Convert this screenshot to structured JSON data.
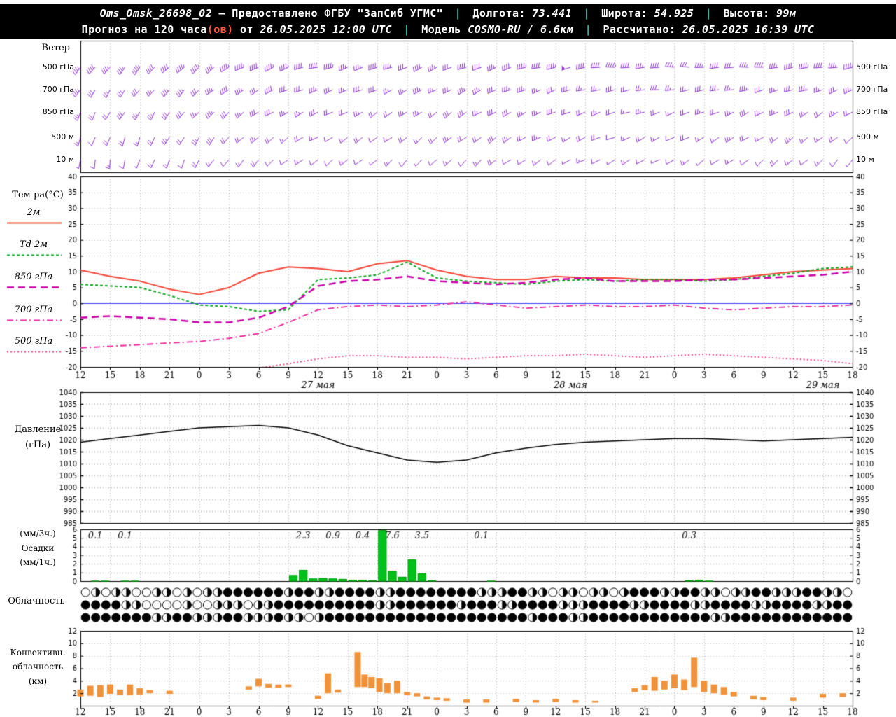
{
  "header": {
    "line1": {
      "station": "Oms_Omsk_26698_02",
      "provided": "– Предоставлено ФГБУ \"ЗапСиб УГМС\"",
      "sep": "|",
      "lon_label": "Долгота:",
      "lon_value": "73.441",
      "lat_label": "Широта:",
      "lat_value": "54.925",
      "alt_label": "Высота:",
      "alt_value": "99м"
    },
    "line2": {
      "forecast_prefix": "Прогноз на 120 часа",
      "forecast_ov": "(ов)",
      "forecast_from": "от",
      "run_datetime": "26.05.2025 12:00 UTC",
      "sep": "|",
      "model_label": "Модель",
      "model_value": "COSMO-RU / 6.6км",
      "calc_label": "Рассчитано:",
      "calc_datetime": "26.05.2025 16:39 UTC"
    }
  },
  "panels": {
    "wind_title": "Ветер",
    "temp_title": "Тем-ра(°C)",
    "pressure_title_1": "Давление",
    "pressure_title_2": "(гПа)",
    "precip_title_1": "(мм/3ч.)",
    "precip_title_2": "Осадки",
    "precip_title_3": "(мм/1ч.)",
    "cloud_title": "Облачность",
    "conv_title_1": "Конвективн.",
    "conv_title_2": "облачность",
    "conv_title_3": "(км)"
  },
  "x_axis": {
    "tick_labels": [
      "12",
      "15",
      "18",
      "21",
      "0",
      "3",
      "6",
      "9",
      "12",
      "15",
      "18",
      "21",
      "0",
      "3",
      "6",
      "9",
      "12",
      "15",
      "18",
      "21",
      "0",
      "3",
      "6",
      "9",
      "12",
      "15",
      "18"
    ],
    "day_labels": [
      {
        "text": "27 мая",
        "pos": 8
      },
      {
        "text": "28 мая",
        "pos": 16.5
      },
      {
        "text": "29 мая",
        "pos": 25
      }
    ]
  },
  "chart_data": [
    {
      "id": "wind",
      "type": "wind-barbs",
      "color": "#8b33cc",
      "t_step_hours": 6,
      "span_hours": 78,
      "levels": [
        {
          "label": "500 гПа",
          "dir": [
            215,
            220,
            230,
            245,
            255,
            250,
            245,
            250,
            255,
            265,
            270,
            268,
            262,
            258
          ],
          "spd": [
            35,
            40,
            45,
            45,
            40,
            35,
            35,
            40,
            45,
            40,
            35,
            35,
            40,
            40
          ]
        },
        {
          "label": "700 гПа",
          "dir": [
            210,
            215,
            225,
            240,
            250,
            245,
            240,
            245,
            250,
            258,
            262,
            258,
            252,
            248
          ],
          "spd": [
            30,
            30,
            35,
            35,
            30,
            25,
            30,
            35,
            30,
            25,
            25,
            30,
            30,
            30
          ]
        },
        {
          "label": "850 гПа",
          "dir": [
            205,
            210,
            220,
            235,
            245,
            238,
            232,
            240,
            246,
            252,
            250,
            246,
            240,
            236
          ],
          "spd": [
            20,
            25,
            30,
            30,
            25,
            20,
            25,
            30,
            25,
            20,
            20,
            25,
            25,
            20
          ]
        },
        {
          "label": "500 м",
          "dir": [
            195,
            202,
            212,
            228,
            240,
            232,
            228,
            235,
            242,
            246,
            242,
            238,
            232,
            228
          ],
          "spd": [
            15,
            20,
            25,
            20,
            15,
            15,
            20,
            25,
            20,
            15,
            15,
            20,
            20,
            15
          ]
        },
        {
          "label": "10 м",
          "dir": [
            185,
            195,
            208,
            222,
            235,
            228,
            222,
            230,
            238,
            242,
            238,
            232,
            228,
            222
          ],
          "spd": [
            10,
            10,
            15,
            15,
            10,
            10,
            10,
            15,
            10,
            10,
            10,
            10,
            15,
            10
          ]
        }
      ]
    },
    {
      "id": "temperature",
      "type": "line",
      "title": "Тем-ра(°C)",
      "x_step_hours": 3,
      "ylim": [
        -20,
        40
      ],
      "ytick_step": 5,
      "zero_line": {
        "value": 0,
        "color": "#4040ff"
      },
      "series": [
        {
          "name": "2м",
          "color": "#f4483a",
          "dash": [],
          "width": 2,
          "values": [
            10.5,
            8.5,
            7,
            4.5,
            2.8,
            5,
            9.5,
            11.5,
            11,
            10,
            12.5,
            13.5,
            10.5,
            8.5,
            7.5,
            7.5,
            8.5,
            8,
            8,
            7.5,
            7.5,
            7.5,
            8,
            9,
            10,
            10.5,
            11
          ]
        },
        {
          "name": "Td 2м",
          "color": "#0da520",
          "dash": [
            4,
            3
          ],
          "width": 2,
          "values": [
            6,
            5.5,
            5,
            2.5,
            -0.5,
            -1,
            -2.5,
            -2,
            7.5,
            8,
            9,
            13,
            8,
            7,
            6.5,
            6,
            7,
            7.5,
            7,
            7.5,
            7.5,
            7,
            7.5,
            8.5,
            9.5,
            11,
            11.5
          ]
        },
        {
          "name": "850 гПа",
          "color": "#cc00aa",
          "dash": [
            10,
            6
          ],
          "width": 2.5,
          "values": [
            -4.5,
            -4,
            -4.5,
            -5,
            -6,
            -6,
            -4.5,
            -1,
            5.5,
            7,
            7.5,
            8.5,
            7,
            6.5,
            6,
            6.5,
            7.5,
            8,
            7,
            7,
            7,
            7.5,
            7.5,
            8,
            8.5,
            9,
            10
          ]
        },
        {
          "name": "700 гПа",
          "color": "#e8239b",
          "dash": [
            9,
            4,
            2,
            4
          ],
          "width": 1.8,
          "values": [
            -14,
            -13.5,
            -13,
            -12.5,
            -12,
            -11,
            -9.5,
            -6,
            -2,
            -1,
            -0.5,
            -1,
            -0.5,
            0.5,
            -0.5,
            -1.5,
            -1,
            -0.5,
            -1,
            -1,
            -0.5,
            -1.5,
            -2,
            -1.5,
            -1,
            -1,
            -0.5
          ]
        },
        {
          "name": "500 гПа",
          "color": "#ef3d76",
          "dash": [
            2,
            3
          ],
          "width": 1.8,
          "values": [
            -23,
            -23,
            -22.5,
            -22,
            -21.5,
            -21,
            -20.3,
            -19,
            -17.5,
            -16.5,
            -16.5,
            -17,
            -17,
            -17.5,
            -17,
            -16.5,
            -16.5,
            -16,
            -16.5,
            -17,
            -16.5,
            -16,
            -16.5,
            -17,
            -17.5,
            -18,
            -19
          ]
        }
      ]
    },
    {
      "id": "pressure",
      "type": "line",
      "ylim": [
        985,
        1040
      ],
      "ytick_step": 5,
      "series": [
        {
          "name": "Давление (гПа)",
          "color": "#000000",
          "dash": [],
          "width": 1.5,
          "values": [
            1019,
            1020.5,
            1022,
            1023.5,
            1025,
            1025.5,
            1026,
            1025,
            1022,
            1017.5,
            1014.5,
            1011.5,
            1010.5,
            1011.5,
            1014.5,
            1016.5,
            1018,
            1019,
            1019.5,
            1020,
            1020.5,
            1020.5,
            1020,
            1019.5,
            1020,
            1020.5,
            1021
          ]
        }
      ]
    },
    {
      "id": "precipitation",
      "type": "bar",
      "ylim": [
        0,
        6
      ],
      "color": "#00c21b",
      "bar_unit": "мм/1ч",
      "label_unit": "мм/3ч",
      "bars": [
        [
          1,
          0.05
        ],
        [
          2,
          0.05
        ],
        [
          4,
          0.05
        ],
        [
          5,
          0.05
        ],
        [
          21,
          0.7
        ],
        [
          22,
          1.3
        ],
        [
          23,
          0.3
        ],
        [
          24,
          0.35
        ],
        [
          25,
          0.3
        ],
        [
          26,
          0.25
        ],
        [
          27,
          0.15
        ],
        [
          28,
          0.15
        ],
        [
          29,
          0.1
        ],
        [
          30,
          5.9
        ],
        [
          31,
          1.2
        ],
        [
          32,
          0.5
        ],
        [
          33,
          2.5
        ],
        [
          34,
          0.9
        ],
        [
          35,
          0.1
        ],
        [
          41,
          0.05
        ],
        [
          61,
          0.1
        ],
        [
          62,
          0.15
        ],
        [
          63,
          0.05
        ]
      ],
      "labels": [
        [
          "0.1",
          1.5
        ],
        [
          "0.1",
          4.5
        ],
        [
          "2.3",
          22.5
        ],
        [
          "0.9",
          25.5
        ],
        [
          "0.4",
          28.5
        ],
        [
          "7.6",
          31.5
        ],
        [
          "3.5",
          34.5
        ],
        [
          "0.1",
          40.5
        ],
        [
          "0.3",
          61.5
        ]
      ]
    },
    {
      "id": "cloudiness",
      "type": "cloud-cover",
      "okta_max": 8,
      "rows": [
        [
          0,
          4,
          0,
          4,
          4,
          0,
          0,
          4,
          4,
          0,
          4,
          0,
          4,
          4,
          8,
          8,
          8,
          8,
          8,
          8,
          4,
          8,
          8,
          4,
          4,
          8,
          8,
          8,
          8,
          4,
          4,
          8,
          8,
          8,
          8,
          8,
          8,
          8,
          8,
          4,
          4,
          4,
          8,
          8,
          4,
          4,
          0,
          4,
          4,
          0,
          4,
          4,
          0,
          4,
          8,
          8,
          8,
          4,
          4,
          8,
          8,
          4,
          4,
          0,
          4,
          4,
          8,
          8,
          4,
          4,
          4,
          8,
          8,
          4,
          4,
          0
        ],
        [
          8,
          8,
          8,
          8,
          4,
          4,
          0,
          0,
          0,
          0,
          4,
          0,
          0,
          4,
          4,
          4,
          0,
          4,
          4,
          8,
          8,
          8,
          8,
          8,
          8,
          8,
          8,
          8,
          8,
          4,
          4,
          8,
          8,
          8,
          8,
          8,
          8,
          4,
          8,
          8,
          8,
          4,
          4,
          8,
          8,
          8,
          8,
          4,
          4,
          4,
          8,
          8,
          8,
          8,
          4,
          4,
          8,
          8,
          8,
          8,
          4,
          4,
          8,
          8,
          8,
          8,
          4,
          4,
          8,
          8,
          8,
          8,
          4,
          4,
          8,
          8
        ],
        [
          8,
          8,
          8,
          8,
          8,
          8,
          8,
          4,
          4,
          8,
          8,
          4,
          4,
          4,
          8,
          8,
          4,
          4,
          4,
          8,
          4,
          4,
          0,
          4,
          8,
          8,
          8,
          8,
          8,
          8,
          8,
          8,
          8,
          8,
          8,
          8,
          8,
          8,
          8,
          8,
          8,
          8,
          8,
          8,
          4,
          8,
          8,
          8,
          4,
          4,
          8,
          8,
          8,
          8,
          8,
          8,
          8,
          8,
          8,
          8,
          8,
          8,
          4,
          4,
          8,
          8,
          8,
          8,
          8,
          8,
          8,
          8,
          8,
          8,
          8,
          8
        ]
      ]
    },
    {
      "id": "convective",
      "type": "range-bar",
      "ylim": [
        0,
        12
      ],
      "ytick_step": 2,
      "color": "#f0923a",
      "bars": [
        [
          0,
          1.5,
          2.6
        ],
        [
          1,
          1.6,
          3.2
        ],
        [
          2,
          1.4,
          3.3
        ],
        [
          3,
          1.9,
          3.4
        ],
        [
          4,
          1.7,
          2.6
        ],
        [
          5,
          1.7,
          3.4
        ],
        [
          6,
          1.8,
          2.8
        ],
        [
          7,
          2,
          2.5
        ],
        [
          9,
          1.9,
          2.4
        ],
        [
          17,
          2.6,
          3.1
        ],
        [
          18,
          3.1,
          4.3
        ],
        [
          19,
          2.9,
          3.5
        ],
        [
          20,
          2.9,
          3.4
        ],
        [
          21,
          3,
          3.4
        ],
        [
          24,
          1.1,
          1.6
        ],
        [
          25,
          2,
          5.2
        ],
        [
          26,
          2.1,
          2.6
        ],
        [
          28,
          3,
          8.6
        ],
        [
          28.7,
          3,
          5
        ],
        [
          29.4,
          2.8,
          4.6
        ],
        [
          30.2,
          2.2,
          4.4
        ],
        [
          31,
          2,
          3.6
        ],
        [
          32,
          2,
          4
        ],
        [
          33,
          1.7,
          2.2
        ],
        [
          34,
          1.5,
          2
        ],
        [
          35,
          1,
          1.5
        ],
        [
          36,
          0.9,
          1.3
        ],
        [
          37,
          0.8,
          1.2
        ],
        [
          39,
          0.5,
          1
        ],
        [
          41,
          0.5,
          1
        ],
        [
          44,
          0.6,
          1.1
        ],
        [
          46,
          0.5,
          0.9
        ],
        [
          48,
          0.6,
          1.1
        ],
        [
          50,
          0.5,
          0.9
        ],
        [
          52,
          0.5,
          0.8
        ],
        [
          56,
          2.2,
          2.8
        ],
        [
          57,
          2.5,
          3.3
        ],
        [
          58,
          2.4,
          4.6
        ],
        [
          59,
          2.6,
          4
        ],
        [
          60,
          2.8,
          5
        ],
        [
          61,
          2.5,
          4.2
        ],
        [
          62,
          3,
          7.7
        ],
        [
          63,
          2.2,
          4
        ],
        [
          64,
          2,
          3.4
        ],
        [
          65,
          1.8,
          3
        ],
        [
          66,
          1.5,
          2.2
        ],
        [
          68,
          1,
          1.6
        ],
        [
          69,
          0.9,
          1.4
        ],
        [
          72,
          0.8,
          1.3
        ],
        [
          75,
          1.3,
          1.9
        ],
        [
          77,
          1.4,
          2
        ]
      ]
    }
  ]
}
